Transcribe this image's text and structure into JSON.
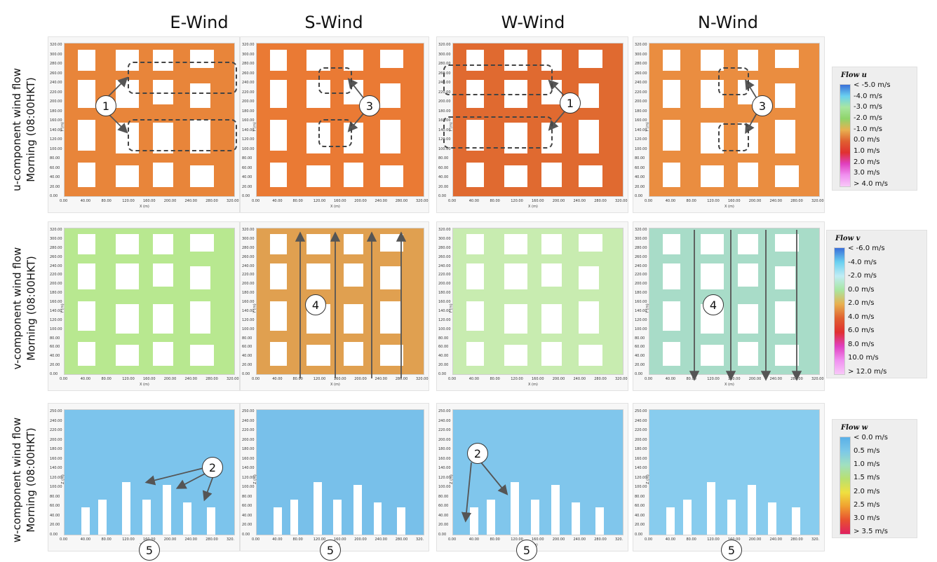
{
  "columns": [
    "E-Wind",
    "S-Wind",
    "W-Wind",
    "N-Wind"
  ],
  "rows": [
    {
      "line1": "u-component wind flow",
      "line2": "Morning (08:00HKT)"
    },
    {
      "line1": "v-component wind flow",
      "line2": "Morning (08:00HKT)"
    },
    {
      "line1": "w-component wind flow",
      "line2": "Morning (08:00HKT)"
    }
  ],
  "axes": {
    "xy_xticks": [
      "0.00",
      "40.00",
      "80.00",
      "120.00",
      "160.00",
      "200.00",
      "240.00",
      "280.00",
      "320.00"
    ],
    "xy_yticks": [
      "0.00",
      "20.00",
      "40.00",
      "60.00",
      "80.00",
      "100.00",
      "120.00",
      "140.00",
      "160.00",
      "180.00",
      "200.00",
      "220.00",
      "240.00",
      "260.00",
      "280.00",
      "300.00",
      "320.00"
    ],
    "xz_xticks": [
      "0.00",
      "40.00",
      "80.00",
      "120.00",
      "160.00",
      "200.00",
      "240.00",
      "280.00",
      "320."
    ],
    "xz_zticks": [
      "0.00",
      "20.00",
      "40.00",
      "60.00",
      "80.00",
      "100.00",
      "120.00",
      "140.00",
      "160.00",
      "180.00",
      "200.00",
      "220.00",
      "240.00",
      "250.00"
    ],
    "xlabel": "X (m)",
    "ylabel": "Y (m)",
    "zlabel": "Z (m)"
  },
  "markers": {
    "m1": "1",
    "m2": "2",
    "m3": "3",
    "m4": "4",
    "m5": "5"
  },
  "legends": [
    {
      "title": "Flow u",
      "labels": [
        "< -5.0 m/s",
        "-4.0  m/s",
        "-3.0 m/s",
        "-2.0  m/s",
        "-1.0  m/s",
        "0.0  m/s",
        "1.0  m/s",
        "2.0  m/s",
        "3.0  m/s",
        "> 4.0 m/s"
      ],
      "colors": [
        "#3a6fd8",
        "#6ad0f0",
        "#a8e6a0",
        "#8fd46a",
        "#e8b050",
        "#e06030",
        "#e03030",
        "#e040c0",
        "#f090f0",
        "#f8c8f8"
      ]
    },
    {
      "title": "Flow v",
      "labels": [
        "< -6.0  m/s",
        "-4.0  m/s",
        "-2.0  m/s",
        "0.0  m/s",
        "2.0  m/s",
        "4.0  m/s",
        "6.0  m/s",
        "8.0  m/s",
        "10.0  m/s",
        "> 12.0 m/s"
      ],
      "colors": [
        "#3a6fd8",
        "#6ad0f0",
        "#c0ecf4",
        "#a8e6a0",
        "#e8b050",
        "#e06030",
        "#e03030",
        "#e040c0",
        "#f090f0",
        "#f8c8f8"
      ]
    },
    {
      "title": "Flow w",
      "labels": [
        "< 0.0  m/s",
        "0.5  m/s",
        "1.0  m/s",
        "1.5  m/s",
        "2.0  m/s",
        "2.5  m/s",
        "3.0  m/s",
        "> 3.5 m/s"
      ],
      "colors": [
        "#5ab0e8",
        "#7cc8e8",
        "#a0e0c0",
        "#b8e070",
        "#f0e040",
        "#f0a030",
        "#e85030",
        "#e02060"
      ]
    }
  ],
  "chart_data": [
    {
      "type": "heatmap",
      "row": "u-component wind flow",
      "column": "E-Wind",
      "variable": "Flow u",
      "xlabel": "X (m)",
      "ylabel": "Y (m)",
      "xlim": [
        0,
        320
      ],
      "ylim": [
        0,
        320
      ],
      "unit": "m/s",
      "annotations": [
        "1"
      ]
    },
    {
      "type": "heatmap",
      "row": "u-component wind flow",
      "column": "S-Wind",
      "variable": "Flow u",
      "xlabel": "X (m)",
      "ylabel": "Y (m)",
      "xlim": [
        0,
        320
      ],
      "ylim": [
        0,
        320
      ],
      "unit": "m/s",
      "annotations": [
        "3"
      ]
    },
    {
      "type": "heatmap",
      "row": "u-component wind flow",
      "column": "W-Wind",
      "variable": "Flow u",
      "xlabel": "X (m)",
      "ylabel": "Y (m)",
      "xlim": [
        0,
        320
      ],
      "ylim": [
        0,
        320
      ],
      "unit": "m/s",
      "annotations": [
        "1"
      ]
    },
    {
      "type": "heatmap",
      "row": "u-component wind flow",
      "column": "N-Wind",
      "variable": "Flow u",
      "xlabel": "X (m)",
      "ylabel": "Y (m)",
      "xlim": [
        0,
        320
      ],
      "ylim": [
        0,
        320
      ],
      "unit": "m/s",
      "annotations": [
        "3"
      ]
    },
    {
      "type": "heatmap",
      "row": "v-component wind flow",
      "column": "E-Wind",
      "variable": "Flow v",
      "xlabel": "X (m)",
      "ylabel": "Y (m)",
      "xlim": [
        0,
        320
      ],
      "ylim": [
        0,
        320
      ],
      "unit": "m/s",
      "annotations": []
    },
    {
      "type": "heatmap",
      "row": "v-component wind flow",
      "column": "S-Wind",
      "variable": "Flow v",
      "xlabel": "X (m)",
      "ylabel": "Y (m)",
      "xlim": [
        0,
        320
      ],
      "ylim": [
        0,
        320
      ],
      "unit": "m/s",
      "annotations": [
        "4"
      ]
    },
    {
      "type": "heatmap",
      "row": "v-component wind flow",
      "column": "W-Wind",
      "variable": "Flow v",
      "xlabel": "X (m)",
      "ylabel": "Y (m)",
      "xlim": [
        0,
        320
      ],
      "ylim": [
        0,
        320
      ],
      "unit": "m/s",
      "annotations": []
    },
    {
      "type": "heatmap",
      "row": "v-component wind flow",
      "column": "N-Wind",
      "variable": "Flow v",
      "xlabel": "X (m)",
      "ylabel": "Y (m)",
      "xlim": [
        0,
        320
      ],
      "ylim": [
        0,
        320
      ],
      "unit": "m/s",
      "annotations": [
        "4"
      ]
    },
    {
      "type": "heatmap",
      "row": "w-component wind flow",
      "column": "E-Wind",
      "variable": "Flow w",
      "xlabel": "X (m)",
      "ylabel": "Z (m)",
      "xlim": [
        0,
        320
      ],
      "ylim": [
        0,
        250
      ],
      "unit": "m/s",
      "annotations": [
        "2",
        "5"
      ]
    },
    {
      "type": "heatmap",
      "row": "w-component wind flow",
      "column": "S-Wind",
      "variable": "Flow w",
      "xlabel": "X (m)",
      "ylabel": "Z (m)",
      "xlim": [
        0,
        320
      ],
      "ylim": [
        0,
        250
      ],
      "unit": "m/s",
      "annotations": [
        "5"
      ]
    },
    {
      "type": "heatmap",
      "row": "w-component wind flow",
      "column": "W-Wind",
      "variable": "Flow w",
      "xlabel": "X (m)",
      "ylabel": "Z (m)",
      "xlim": [
        0,
        320
      ],
      "ylim": [
        0,
        250
      ],
      "unit": "m/s",
      "annotations": [
        "2",
        "5"
      ]
    },
    {
      "type": "heatmap",
      "row": "w-component wind flow",
      "column": "N-Wind",
      "variable": "Flow w",
      "xlabel": "X (m)",
      "ylabel": "Z (m)",
      "xlim": [
        0,
        320
      ],
      "ylim": [
        0,
        250
      ],
      "unit": "m/s",
      "annotations": [
        "5"
      ]
    }
  ]
}
